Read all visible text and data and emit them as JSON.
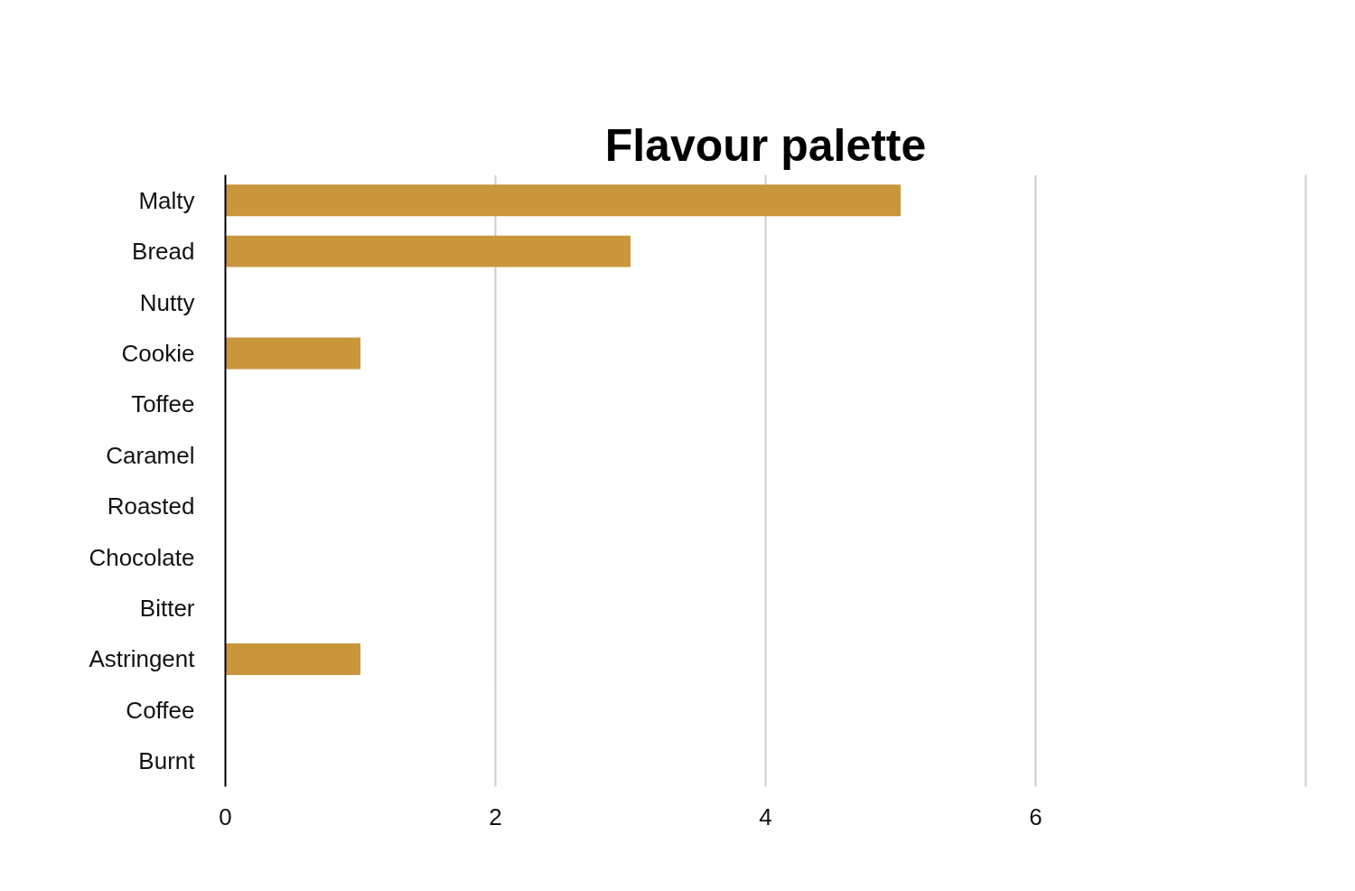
{
  "chart_data": {
    "type": "bar",
    "orientation": "horizontal",
    "title": "Flavour palette",
    "categories": [
      "Malty",
      "Bread",
      "Nutty",
      "Cookie",
      "Toffee",
      "Caramel",
      "Roasted",
      "Chocolate",
      "Bitter",
      "Astringent",
      "Coffee",
      "Burnt"
    ],
    "values": [
      5,
      3,
      0,
      1,
      0,
      0,
      0,
      0,
      0,
      1,
      0,
      0
    ],
    "color": "#c9963b",
    "xlim": [
      0,
      8
    ],
    "xticks": [
      0,
      2,
      4,
      6,
      {
        "value": 8,
        "label": null
      }
    ],
    "grid": "x"
  }
}
